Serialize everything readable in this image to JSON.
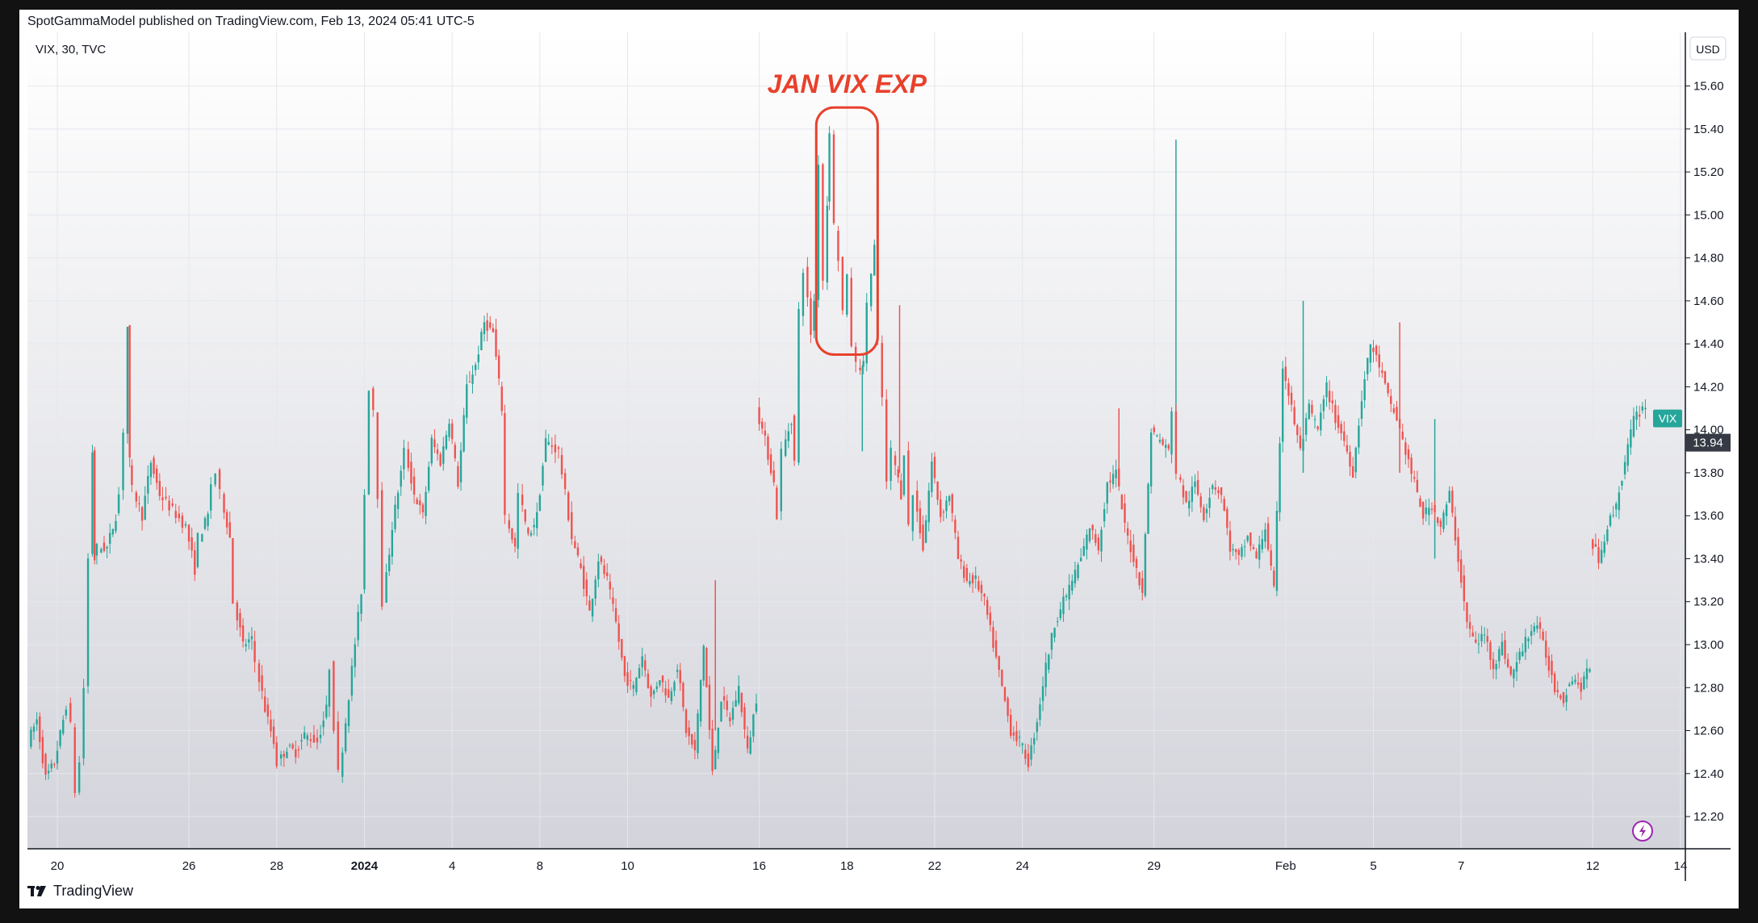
{
  "header": {
    "published": "SpotGammaModel published on TradingView.com, Feb 13, 2024 05:41 UTC-5"
  },
  "chart": {
    "symbol_line": "VIX, 30, TVC",
    "currency": "USD",
    "series_tag": "VIX",
    "last_price": "13.94",
    "annotation": "JAN VIX EXP"
  },
  "footer": {
    "brand": "TradingView"
  },
  "colors": {
    "up": "#26a69a",
    "down": "#ef5350",
    "annotation": "#e8412c",
    "last_price_bg": "#363a45",
    "series_tag_bg": "#26a69a"
  },
  "chart_data": {
    "type": "candlestick",
    "title": "",
    "xlabel": "",
    "ylabel": "",
    "ylim": [
      12.05,
      15.85
    ],
    "y_ticks": [
      "12.20",
      "12.40",
      "12.60",
      "12.80",
      "13.00",
      "13.20",
      "13.40",
      "13.60",
      "13.80",
      "14.00",
      "14.20",
      "14.40",
      "14.60",
      "14.80",
      "15.00",
      "15.20",
      "15.40",
      "15.60"
    ],
    "x_ticks": [
      {
        "label": "20",
        "day": 0,
        "bold": false
      },
      {
        "label": "26",
        "day": 3,
        "bold": false
      },
      {
        "label": "28",
        "day": 5,
        "bold": false
      },
      {
        "label": "2024",
        "day": 7,
        "bold": true
      },
      {
        "label": "4",
        "day": 9,
        "bold": false
      },
      {
        "label": "8",
        "day": 11,
        "bold": false
      },
      {
        "label": "10",
        "day": 13,
        "bold": false
      },
      {
        "label": "16",
        "day": 16,
        "bold": false
      },
      {
        "label": "18",
        "day": 18,
        "bold": false
      },
      {
        "label": "22",
        "day": 20,
        "bold": false
      },
      {
        "label": "24",
        "day": 22,
        "bold": false
      },
      {
        "label": "29",
        "day": 25,
        "bold": false
      },
      {
        "label": "Feb",
        "day": 28,
        "bold": false
      },
      {
        "label": "5",
        "day": 30,
        "bold": false
      },
      {
        "label": "7",
        "day": 32,
        "bold": false
      },
      {
        "label": "12",
        "day": 35,
        "bold": false
      },
      {
        "label": "14",
        "day": 37,
        "bold": false
      }
    ],
    "series": [
      {
        "name": "VIX",
        "path": [
          [
            -0.6,
            12.55
          ],
          [
            -0.4,
            12.65
          ],
          [
            -0.2,
            12.38
          ],
          [
            0.0,
            12.45
          ],
          [
            0.2,
            12.65
          ],
          [
            0.3,
            12.72
          ],
          [
            0.4,
            12.62
          ],
          [
            0.5,
            12.32
          ],
          [
            0.6,
            12.45
          ],
          [
            0.7,
            12.8
          ],
          [
            0.8,
            13.4
          ],
          [
            0.85,
            13.9
          ],
          [
            0.9,
            13.4
          ],
          [
            1.0,
            13.45
          ],
          [
            1.2,
            13.45
          ],
          [
            1.4,
            13.6
          ],
          [
            1.5,
            13.7
          ],
          [
            1.6,
            14.0
          ],
          [
            1.65,
            14.48
          ],
          [
            1.7,
            13.85
          ],
          [
            1.8,
            13.72
          ],
          [
            2.0,
            13.6
          ],
          [
            2.2,
            13.85
          ],
          [
            2.4,
            13.7
          ],
          [
            3.0,
            13.55
          ],
          [
            3.2,
            13.35
          ],
          [
            3.3,
            13.5
          ],
          [
            3.5,
            13.6
          ],
          [
            3.6,
            13.75
          ],
          [
            3.7,
            13.8
          ],
          [
            3.8,
            13.7
          ],
          [
            4.0,
            13.5
          ],
          [
            4.1,
            13.2
          ],
          [
            4.3,
            13.0
          ],
          [
            4.5,
            13.02
          ],
          [
            4.6,
            12.92
          ],
          [
            4.8,
            12.7
          ],
          [
            5.0,
            12.55
          ],
          [
            5.1,
            12.45
          ],
          [
            5.3,
            12.52
          ],
          [
            5.5,
            12.5
          ],
          [
            5.7,
            12.58
          ],
          [
            6.0,
            12.55
          ],
          [
            6.2,
            12.7
          ],
          [
            6.3,
            12.9
          ],
          [
            6.4,
            12.62
          ],
          [
            6.5,
            12.4
          ],
          [
            7.0,
            13.25
          ],
          [
            7.1,
            13.7
          ],
          [
            7.2,
            14.2
          ],
          [
            7.3,
            14.1
          ],
          [
            7.4,
            13.7
          ],
          [
            7.5,
            13.2
          ],
          [
            7.7,
            13.55
          ],
          [
            7.9,
            13.8
          ],
          [
            8.0,
            13.9
          ],
          [
            8.2,
            13.7
          ],
          [
            8.4,
            13.6
          ],
          [
            8.6,
            13.95
          ],
          [
            8.8,
            13.85
          ],
          [
            9.0,
            14.05
          ],
          [
            9.2,
            13.75
          ],
          [
            9.4,
            14.2
          ],
          [
            9.6,
            14.3
          ],
          [
            9.8,
            14.5
          ],
          [
            10.0,
            14.45
          ],
          [
            10.2,
            14.1
          ],
          [
            10.3,
            13.6
          ],
          [
            10.5,
            13.45
          ],
          [
            10.6,
            13.7
          ],
          [
            10.8,
            13.5
          ],
          [
            11.0,
            13.6
          ],
          [
            11.2,
            13.95
          ],
          [
            11.5,
            13.9
          ],
          [
            11.8,
            13.5
          ],
          [
            12.0,
            13.35
          ],
          [
            12.2,
            13.15
          ],
          [
            12.4,
            13.4
          ],
          [
            12.6,
            13.3
          ],
          [
            12.8,
            13.1
          ],
          [
            13.0,
            12.85
          ],
          [
            13.2,
            12.8
          ],
          [
            13.4,
            12.95
          ],
          [
            13.6,
            12.75
          ],
          [
            13.8,
            12.85
          ],
          [
            14.0,
            12.75
          ],
          [
            14.2,
            12.9
          ],
          [
            14.4,
            12.6
          ],
          [
            14.6,
            12.5
          ],
          [
            14.8,
            13.0
          ],
          [
            15.0,
            12.4
          ],
          [
            15.2,
            12.75
          ],
          [
            15.4,
            12.65
          ],
          [
            15.6,
            12.8
          ],
          [
            15.8,
            12.5
          ],
          [
            16.0,
            12.75
          ],
          [
            16.0,
            14.1
          ],
          [
            16.2,
            13.95
          ],
          [
            16.4,
            13.75
          ],
          [
            16.5,
            13.6
          ],
          [
            16.6,
            13.9
          ],
          [
            16.8,
            14.05
          ],
          [
            16.9,
            13.85
          ],
          [
            17.0,
            14.55
          ],
          [
            17.1,
            14.75
          ],
          [
            17.25,
            14.45
          ],
          [
            17.35,
            14.6
          ],
          [
            17.45,
            15.25
          ],
          [
            17.55,
            14.7
          ],
          [
            17.6,
            15.05
          ],
          [
            17.7,
            15.4
          ],
          [
            17.8,
            14.95
          ],
          [
            17.9,
            14.8
          ],
          [
            18.0,
            14.55
          ],
          [
            18.1,
            14.7
          ],
          [
            18.2,
            14.4
          ],
          [
            18.3,
            14.3
          ],
          [
            18.45,
            14.3
          ],
          [
            18.55,
            14.6
          ],
          [
            18.7,
            14.85
          ],
          [
            18.8,
            14.4
          ],
          [
            18.9,
            14.15
          ],
          [
            19.0,
            13.75
          ],
          [
            19.1,
            13.9
          ],
          [
            19.3,
            13.7
          ],
          [
            19.4,
            13.9
          ],
          [
            19.5,
            13.55
          ],
          [
            19.6,
            13.7
          ],
          [
            19.8,
            13.45
          ],
          [
            20.0,
            13.85
          ],
          [
            20.2,
            13.6
          ],
          [
            20.4,
            13.7
          ],
          [
            20.6,
            13.4
          ],
          [
            20.8,
            13.3
          ],
          [
            21.0,
            13.3
          ],
          [
            21.2,
            13.2
          ],
          [
            21.4,
            13.0
          ],
          [
            21.6,
            12.8
          ],
          [
            21.8,
            12.6
          ],
          [
            22.0,
            12.55
          ],
          [
            22.2,
            12.45
          ],
          [
            22.4,
            12.65
          ],
          [
            22.6,
            12.9
          ],
          [
            22.8,
            13.1
          ],
          [
            23.0,
            13.2
          ],
          [
            23.2,
            13.3
          ],
          [
            23.4,
            13.4
          ],
          [
            23.6,
            13.55
          ],
          [
            23.8,
            13.45
          ],
          [
            24.0,
            13.75
          ],
          [
            24.2,
            13.8
          ],
          [
            24.4,
            13.55
          ],
          [
            24.6,
            13.4
          ],
          [
            24.8,
            13.25
          ],
          [
            25.0,
            14.0
          ],
          [
            25.2,
            13.95
          ],
          [
            25.4,
            13.9
          ],
          [
            25.5,
            14.1
          ],
          [
            25.6,
            13.8
          ],
          [
            25.8,
            13.65
          ],
          [
            26.0,
            13.75
          ],
          [
            26.2,
            13.6
          ],
          [
            26.4,
            13.75
          ],
          [
            26.6,
            13.7
          ],
          [
            26.8,
            13.45
          ],
          [
            27.0,
            13.4
          ],
          [
            27.2,
            13.5
          ],
          [
            27.4,
            13.4
          ],
          [
            27.6,
            13.55
          ],
          [
            27.8,
            13.25
          ],
          [
            28.0,
            14.3
          ],
          [
            28.2,
            14.1
          ],
          [
            28.4,
            13.9
          ],
          [
            28.6,
            14.1
          ],
          [
            28.8,
            14.0
          ],
          [
            29.0,
            14.2
          ],
          [
            29.2,
            14.05
          ],
          [
            29.4,
            13.95
          ],
          [
            29.6,
            13.8
          ],
          [
            29.8,
            14.15
          ],
          [
            30.0,
            14.4
          ],
          [
            30.2,
            14.3
          ],
          [
            30.4,
            14.15
          ],
          [
            30.6,
            14.05
          ],
          [
            30.8,
            13.9
          ],
          [
            31.0,
            13.75
          ],
          [
            31.2,
            13.6
          ],
          [
            31.4,
            13.65
          ],
          [
            31.6,
            13.55
          ],
          [
            31.8,
            13.7
          ],
          [
            32.0,
            13.4
          ],
          [
            32.2,
            13.1
          ],
          [
            32.4,
            13.0
          ],
          [
            32.6,
            13.05
          ],
          [
            32.8,
            12.9
          ],
          [
            33.0,
            13.0
          ],
          [
            33.2,
            12.85
          ],
          [
            33.4,
            12.95
          ],
          [
            33.6,
            13.05
          ],
          [
            33.8,
            13.1
          ],
          [
            34.0,
            12.95
          ],
          [
            34.2,
            12.8
          ],
          [
            34.4,
            12.75
          ],
          [
            34.6,
            12.85
          ],
          [
            34.8,
            12.8
          ],
          [
            35.0,
            12.9
          ],
          [
            35.0,
            13.5
          ],
          [
            35.2,
            13.4
          ],
          [
            35.4,
            13.55
          ],
          [
            35.6,
            13.65
          ],
          [
            35.8,
            13.85
          ],
          [
            36.0,
            14.05
          ],
          [
            36.2,
            14.1
          ],
          [
            36.3,
            14.12
          ]
        ]
      }
    ],
    "spikes": [
      {
        "day": 25.5,
        "low": 14.0,
        "high": 15.35
      },
      {
        "day": 19.2,
        "low": 13.8,
        "high": 14.58
      },
      {
        "day": 18.35,
        "low": 13.9,
        "high": 14.3
      },
      {
        "day": 24.2,
        "low": 13.8,
        "high": 14.1
      },
      {
        "day": 31.4,
        "low": 13.4,
        "high": 14.05
      },
      {
        "day": 15.0,
        "low": 12.6,
        "high": 13.3
      },
      {
        "day": 28.4,
        "low": 13.8,
        "high": 14.6
      },
      {
        "day": 30.6,
        "low": 13.8,
        "high": 14.5
      }
    ],
    "highlight_box": {
      "day_start": 17.3,
      "day_end": 18.7,
      "low": 14.35,
      "high": 15.5
    },
    "last_value": 13.94,
    "grid": true,
    "legend": "none"
  }
}
